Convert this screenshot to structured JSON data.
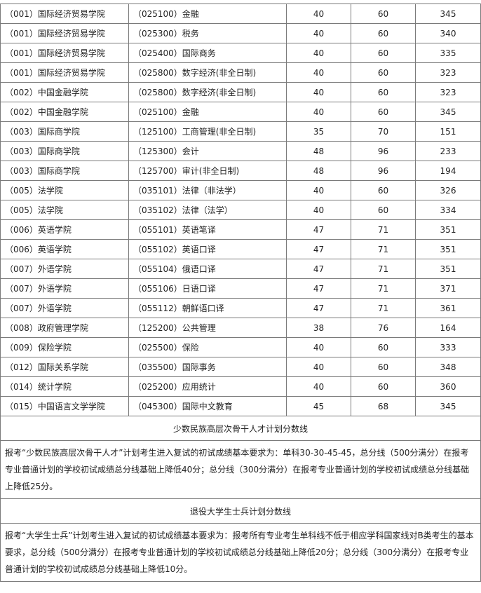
{
  "rows": [
    [
      "（001）国际经济贸易学院",
      "（025100）金融",
      "40",
      "60",
      "345"
    ],
    [
      "（001）国际经济贸易学院",
      "（025300）税务",
      "40",
      "60",
      "340"
    ],
    [
      "（001）国际经济贸易学院",
      "（025400）国际商务",
      "40",
      "60",
      "335"
    ],
    [
      "（001）国际经济贸易学院",
      "（025800）数字经济(非全日制)",
      "40",
      "60",
      "323"
    ],
    [
      "（002）中国金融学院",
      "（025800）数字经济(非全日制)",
      "40",
      "60",
      "323"
    ],
    [
      "（002）中国金融学院",
      "（025100）金融",
      "40",
      "60",
      "345"
    ],
    [
      "（003）国际商学院",
      "（125100）工商管理(非全日制)",
      "35",
      "70",
      "151"
    ],
    [
      "（003）国际商学院",
      "（125300）会计",
      "48",
      "96",
      "233"
    ],
    [
      "（003）国际商学院",
      "（125700）审计(非全日制)",
      "48",
      "96",
      "194"
    ],
    [
      "（005）法学院",
      "（035101）法律（非法学）",
      "40",
      "60",
      "326"
    ],
    [
      "（005）法学院",
      "（035102）法律（法学）",
      "40",
      "60",
      "334"
    ],
    [
      "（006）英语学院",
      "（055101）英语笔译",
      "47",
      "71",
      "351"
    ],
    [
      "（006）英语学院",
      "（055102）英语口译",
      "47",
      "71",
      "351"
    ],
    [
      "（007）外语学院",
      "（055104）俄语口译",
      "47",
      "71",
      "351"
    ],
    [
      "（007）外语学院",
      "（055106）日语口译",
      "47",
      "71",
      "371"
    ],
    [
      "（007）外语学院",
      "（055112）朝鲜语口译",
      "47",
      "71",
      "361"
    ],
    [
      "（008）政府管理学院",
      "（125200）公共管理",
      "38",
      "76",
      "164"
    ],
    [
      "（009）保险学院",
      "（025500）保险",
      "40",
      "60",
      "333"
    ],
    [
      "（012）国际关系学院",
      "（035500）国际事务",
      "40",
      "60",
      "348"
    ],
    [
      "（014）统计学院",
      "（025200）应用统计",
      "40",
      "60",
      "360"
    ],
    [
      "（015）中国语言文学学院",
      "（045300）国际中文教育",
      "45",
      "68",
      "345"
    ]
  ],
  "minority": {
    "heading": "少数民族高层次骨干人才计划分数线",
    "text": "报考“少数民族高层次骨干人才”计划考生进入复试的初试成绩基本要求为：单科30-30-45-45，总分线（500分满分）在报考专业普通计划的学校初试成绩总分线基础上降低40分；总分线（300分满分）在报考专业普通计划的学校初试成绩总分线基础上降低25分。"
  },
  "veteran": {
    "heading": "退役大学生士兵计划分数线",
    "text": "报考“大学生士兵”计划考生进入复试的初试成绩基本要求为：报考所有专业考生单科线不低于相应学科国家线对B类考生的基本要求，总分线（500分满分）在报考专业普通计划的学校初试成绩总分线基础上降低20分；总分线（300分满分）在报考专业普通计划的学校初试成绩总分线基础上降低10分。"
  }
}
